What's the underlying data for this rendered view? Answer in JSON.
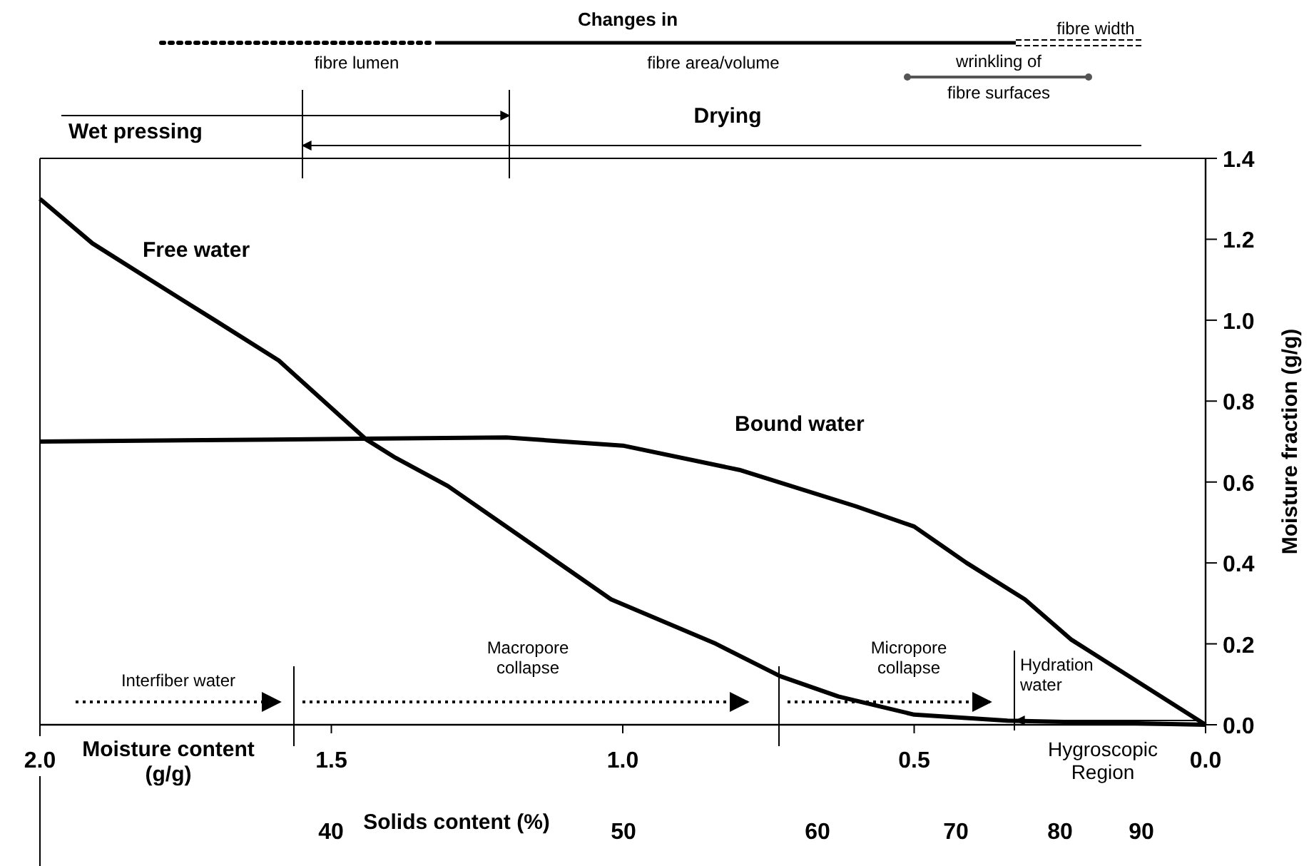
{
  "chart_data": {
    "type": "line",
    "xlabel": "Moisture content\n(g/g)",
    "ylabel": "Moisture fraction (g/g)",
    "series": [
      {
        "name": "Free water",
        "color": "#000000",
        "x": [
          2.0,
          1.91,
          1.8,
          1.7,
          1.59,
          1.44,
          1.39,
          1.3,
          1.19,
          1.02,
          0.84,
          0.73,
          0.63,
          0.5,
          0.34,
          0.0
        ],
        "values": [
          1.3,
          1.19,
          1.09,
          1.0,
          0.9,
          0.705,
          0.66,
          0.59,
          0.48,
          0.31,
          0.2,
          0.12,
          0.07,
          0.025,
          0.01,
          0.0
        ]
      },
      {
        "name": "Bound water",
        "color": "#000000",
        "x": [
          2.0,
          1.6,
          1.2,
          1.0,
          0.8,
          0.6,
          0.5,
          0.41,
          0.31,
          0.23,
          0.0
        ],
        "values": [
          0.7,
          0.705,
          0.71,
          0.69,
          0.63,
          0.54,
          0.49,
          0.4,
          0.31,
          0.21,
          0.0
        ]
      }
    ],
    "xlim": [
      2.0,
      0.0
    ],
    "xticks": [
      {
        "value": 2.0,
        "label": "2.0"
      },
      {
        "value": 1.5,
        "label": "1.5"
      },
      {
        "value": 1.0,
        "label": "1.0"
      },
      {
        "value": 0.5,
        "label": "0.5"
      },
      {
        "value": 0.0,
        "label": "0.0"
      }
    ],
    "ylim": [
      0,
      1.4
    ],
    "yticks": [
      {
        "value": 0,
        "label": "0.0"
      },
      {
        "value": 0.2,
        "label": "0.2"
      },
      {
        "value": 0.4,
        "label": "0.4"
      },
      {
        "value": 0.6,
        "label": "0.6"
      },
      {
        "value": 0.8,
        "label": "0.8"
      },
      {
        "value": 1.0,
        "label": "1.0"
      },
      {
        "value": 1.2,
        "label": "1.2"
      },
      {
        "value": 1.4,
        "label": "1.4"
      }
    ],
    "grid": false,
    "marker": "none",
    "line_style": "solid",
    "annotations": [
      "Changes  in",
      "fibre lumen",
      "fibre area/volume",
      "fibre width",
      "wrinkling of\nfibre surfaces",
      "Wet pressing",
      "Drying",
      "Interfiber water",
      "Macropore\ncollapse",
      "Micropore\ncollapse",
      "Hydration\nwater",
      "Hygroscopic\nRegion",
      "Solids content (%)",
      "40",
      "50",
      "60",
      "70",
      "80",
      "90"
    ]
  }
}
